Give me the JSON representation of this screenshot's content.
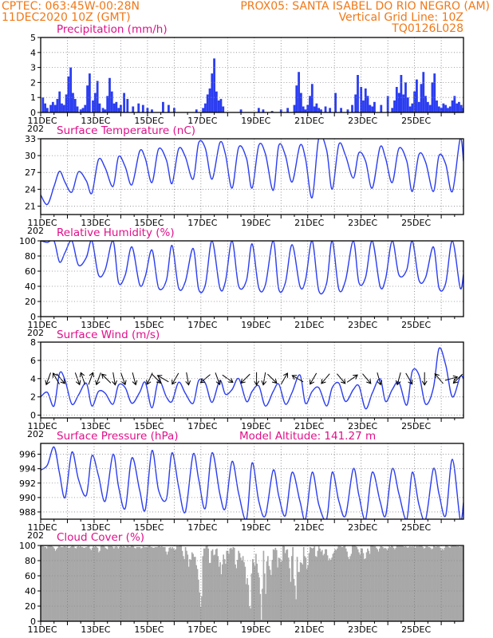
{
  "header": {
    "line1_left": "CPTEC:   063:45W-00:28N",
    "line1_right": "PROX05: SANTA ISABEL DO RIO NEGRO (AM)",
    "line2_left": "11DEC2020 10Z (GMT)",
    "line2_right": "Vertical Grid Line: 10Z",
    "line3_right": "TQ0126L028"
  },
  "colors": {
    "header": "#f07818",
    "title": "#e0108a",
    "series": "#2b3df0",
    "cloud": "#a8a8a8"
  },
  "chart_data": [
    {
      "type": "bar",
      "id": "precip",
      "title": "Precipitation (mm/h)",
      "x_unit": "hours since 11DEC2020 10Z",
      "ylim": [
        0,
        5
      ],
      "yticks": [
        0,
        1,
        2,
        3,
        4,
        5
      ],
      "x": [
        2,
        4,
        6,
        9,
        11,
        13,
        15,
        17,
        19,
        21,
        23,
        25,
        27,
        29,
        31,
        33,
        36,
        38,
        40,
        42,
        44,
        47,
        49,
        51,
        53,
        56,
        58,
        60,
        62,
        64,
        66,
        68,
        70,
        72,
        75,
        78,
        83,
        88,
        92,
        96,
        100,
        110,
        115,
        120,
        140,
        146,
        148,
        150,
        152,
        154,
        156,
        158,
        160,
        162,
        164,
        180,
        196,
        200,
        208,
        216,
        222,
        228,
        230,
        232,
        234,
        236,
        238,
        240,
        242,
        244,
        246,
        248,
        250,
        252,
        256,
        260,
        265,
        270,
        276,
        280,
        283,
        285,
        288,
        290,
        292,
        294,
        296,
        298,
        300,
        306,
        312,
        316,
        318,
        320,
        322,
        324,
        326,
        328,
        330,
        332,
        334,
        336,
        338,
        340,
        342,
        344,
        346,
        348,
        350,
        352,
        354,
        356,
        358,
        360,
        362,
        364,
        366,
        368,
        370,
        372,
        374,
        376,
        378,
        380
      ],
      "values": [
        1.0,
        0.6,
        0.3,
        0.5,
        0.7,
        0.5,
        0.9,
        1.4,
        0.6,
        0.5,
        1.2,
        2.4,
        3.0,
        1.3,
        0.9,
        0.4,
        0.2,
        0.3,
        0.5,
        1.8,
        2.6,
        0.8,
        1.3,
        2.1,
        0.6,
        0.3,
        0.2,
        1.1,
        2.3,
        1.4,
        0.6,
        0.7,
        0.3,
        0.5,
        1.3,
        0.9,
        0.4,
        0.6,
        0.5,
        0.3,
        0.2,
        0.7,
        0.5,
        0.3,
        0.2,
        0.3,
        0.6,
        1.2,
        1.6,
        2.6,
        3.6,
        1.4,
        0.8,
        0.9,
        0.4,
        0.2,
        0.3,
        0.2,
        0.1,
        0.2,
        0.3,
        0.5,
        1.8,
        2.7,
        1.3,
        0.4,
        0.2,
        0.5,
        1.1,
        1.9,
        0.4,
        0.6,
        0.3,
        0.2,
        0.4,
        0.3,
        1.3,
        0.3,
        0.2,
        0.5,
        1.2,
        2.5,
        1.7,
        0.8,
        1.6,
        1.1,
        0.5,
        0.4,
        0.7,
        0.5,
        1.1,
        0.3,
        0.8,
        1.7,
        1.3,
        2.5,
        1.2,
        2.0,
        1.0,
        0.4,
        0.6,
        1.4,
        2.2,
        0.7,
        1.9,
        2.7,
        1.1,
        0.7,
        0.5,
        2.0,
        2.6,
        0.8,
        0.4,
        0.3,
        0.6,
        0.5,
        0.3,
        0.4,
        0.8,
        1.1,
        0.6,
        0.7,
        0.5,
        0.3
      ]
    },
    {
      "type": "line",
      "id": "temperature",
      "title": "Surface Temperature (nC)",
      "x_unit": "hours since 11DEC2020 10Z",
      "ylim": [
        19.5,
        33
      ],
      "yticks": [
        21,
        24,
        27,
        30,
        33
      ],
      "x": [
        0,
        6,
        12,
        17,
        22,
        28,
        34,
        41,
        46,
        52,
        58,
        65,
        70,
        76,
        82,
        89,
        94,
        100,
        106,
        113,
        118,
        124,
        130,
        137,
        142,
        148,
        154,
        161,
        166,
        172,
        178,
        185,
        190,
        196,
        202,
        209,
        214,
        220,
        226,
        233,
        238,
        244,
        250,
        257,
        262,
        268,
        274,
        281,
        286,
        292,
        298,
        305,
        310,
        316,
        322,
        329,
        334,
        340,
        346,
        353,
        358,
        364,
        370,
        377,
        380
      ],
      "values": [
        23.0,
        21.3,
        24.5,
        27.2,
        25.2,
        23.5,
        27.1,
        25.5,
        23.3,
        29.3,
        27.8,
        24.5,
        29.8,
        28.0,
        24.8,
        30.8,
        29.5,
        25.2,
        31.2,
        29.2,
        25.0,
        31.2,
        29.8,
        25.8,
        32.3,
        31.3,
        25.8,
        32.3,
        30.3,
        24.2,
        31.5,
        29.5,
        24.2,
        31.8,
        30.3,
        23.8,
        31.8,
        30.0,
        25.3,
        31.8,
        29.5,
        22.5,
        33.2,
        31.0,
        24.0,
        32.0,
        30.0,
        26.0,
        30.5,
        29.0,
        24.2,
        31.5,
        29.5,
        25.2,
        31.3,
        29.0,
        23.6,
        30.2,
        28.8,
        23.6,
        30.0,
        28.5,
        23.6,
        33.0,
        29.0
      ]
    },
    {
      "type": "line",
      "id": "humidity",
      "title": "Relative Humidity (%)",
      "x_unit": "hours since 11DEC2020 10Z",
      "ylim": [
        0,
        100
      ],
      "yticks": [
        0,
        20,
        40,
        60,
        80,
        100
      ],
      "x": [
        0,
        6,
        12,
        17,
        22,
        28,
        34,
        41,
        46,
        52,
        58,
        65,
        70,
        76,
        82,
        89,
        94,
        100,
        106,
        113,
        118,
        124,
        130,
        137,
        142,
        148,
        154,
        161,
        166,
        172,
        178,
        185,
        190,
        196,
        202,
        209,
        214,
        220,
        226,
        233,
        238,
        244,
        250,
        257,
        262,
        268,
        274,
        281,
        286,
        292,
        298,
        305,
        310,
        316,
        322,
        329,
        334,
        340,
        346,
        353,
        358,
        364,
        370,
        377,
        380
      ],
      "values": [
        100,
        98,
        100,
        72,
        85,
        100,
        68,
        78,
        100,
        55,
        62,
        100,
        45,
        55,
        92,
        42,
        53,
        88,
        38,
        48,
        94,
        38,
        46,
        90,
        36,
        42,
        100,
        38,
        46,
        100,
        40,
        48,
        96,
        38,
        42,
        100,
        36,
        45,
        95,
        40,
        48,
        100,
        34,
        44,
        100,
        36,
        48,
        100,
        45,
        52,
        100,
        40,
        50,
        100,
        55,
        62,
        100,
        48,
        52,
        92,
        38,
        44,
        100,
        38,
        56
      ]
    },
    {
      "type": "line",
      "id": "wind",
      "title": "Surface Wind (m/s)",
      "x_unit": "hours since 11DEC2020 10Z",
      "ylim": [
        -0.3,
        8
      ],
      "yticks": [
        0,
        2,
        4,
        6,
        8
      ],
      "x": [
        0,
        6,
        12,
        17,
        22,
        28,
        34,
        41,
        46,
        52,
        58,
        65,
        70,
        76,
        82,
        89,
        94,
        100,
        106,
        113,
        118,
        124,
        130,
        137,
        142,
        148,
        154,
        161,
        166,
        172,
        178,
        185,
        190,
        196,
        202,
        209,
        214,
        220,
        226,
        233,
        238,
        244,
        250,
        257,
        262,
        268,
        274,
        281,
        286,
        292,
        298,
        305,
        310,
        316,
        322,
        329,
        334,
        340,
        346,
        353,
        358,
        364,
        370,
        377,
        380
      ],
      "values": [
        2.0,
        2.5,
        1.0,
        4.6,
        3.8,
        1.2,
        2.2,
        3.5,
        1.0,
        2.6,
        2.4,
        1.2,
        3.3,
        3.0,
        1.3,
        2.5,
        3.6,
        0.8,
        3.8,
        2.0,
        1.5,
        3.6,
        2.4,
        1.3,
        3.8,
        3.5,
        1.4,
        3.8,
        2.3,
        2.8,
        4.0,
        1.5,
        2.6,
        3.2,
        1.0,
        2.6,
        3.4,
        1.2,
        2.5,
        4.4,
        1.3,
        2.6,
        3.0,
        1.0,
        3.0,
        3.5,
        1.5,
        2.8,
        3.2,
        0.7,
        2.4,
        4.0,
        1.5,
        2.8,
        3.6,
        1.1,
        4.8,
        4.4,
        1.2,
        3.0,
        7.3,
        5.5,
        2.0,
        4.2,
        4.0
      ],
      "arrows_x": [
        7,
        14,
        18,
        33,
        38,
        45,
        52,
        59,
        66,
        74,
        84,
        98,
        104,
        110,
        121,
        132,
        148,
        159,
        168,
        184,
        194,
        201,
        208,
        219,
        231,
        245,
        256,
        270,
        280,
        293,
        304,
        322,
        331,
        345,
        358,
        369,
        375
      ],
      "arrows_dir_deg": [
        200,
        330,
        140,
        160,
        340,
        20,
        200,
        315,
        170,
        160,
        165,
        205,
        135,
        300,
        210,
        170,
        230,
        160,
        125,
        225,
        180,
        190,
        135,
        30,
        300,
        210,
        220,
        140,
        55,
        140,
        165,
        195,
        150,
        180,
        320,
        75,
        225
      ]
    },
    {
      "type": "line",
      "id": "pressure",
      "title": "Surface Pressure (hPa)",
      "annotation": "Model Altitude: 141.27 m",
      "x_unit": "hours since 11DEC2020 10Z",
      "ylim": [
        987,
        997.5
      ],
      "yticks": [
        988,
        990,
        992,
        994,
        996
      ],
      "x": [
        0,
        6,
        12,
        17,
        22,
        28,
        34,
        41,
        46,
        52,
        58,
        65,
        70,
        76,
        82,
        89,
        94,
        100,
        106,
        113,
        118,
        124,
        130,
        137,
        142,
        148,
        154,
        161,
        166,
        172,
        178,
        185,
        190,
        196,
        202,
        209,
        214,
        220,
        226,
        233,
        238,
        244,
        250,
        257,
        262,
        268,
        274,
        281,
        286,
        292,
        298,
        305,
        310,
        316,
        322,
        329,
        334,
        340,
        346,
        353,
        358,
        364,
        370,
        377,
        380
      ],
      "values": [
        993.8,
        994.5,
        997.0,
        993.3,
        990.0,
        996.3,
        992.5,
        990.3,
        995.8,
        993.0,
        989.5,
        996.0,
        991.5,
        988.5,
        995.5,
        991.0,
        988.3,
        996.5,
        991.0,
        989.8,
        996.2,
        991.5,
        988.0,
        996.0,
        992.5,
        988.5,
        996.2,
        990.5,
        988.5,
        995.0,
        990.5,
        987.0,
        994.8,
        989.5,
        987.5,
        993.8,
        990.2,
        987.5,
        993.5,
        989.5,
        987.0,
        993.5,
        989.0,
        987.0,
        993.5,
        989.5,
        987.5,
        994.0,
        990.3,
        987.0,
        993.5,
        989.5,
        987.5,
        994.0,
        990.5,
        987.0,
        993.5,
        989.0,
        987.0,
        994.0,
        990.5,
        987.5,
        995.3,
        987.0,
        989.3
      ]
    },
    {
      "type": "bar",
      "id": "cloud",
      "title": "Cloud Cover (%)",
      "x_unit": "hours since 11DEC2020 10Z",
      "ylim": [
        0,
        100
      ],
      "yticks": [
        0,
        20,
        40,
        60,
        80,
        100
      ],
      "values": [
        100,
        100,
        99,
        98,
        98,
        96,
        99,
        100,
        100,
        100,
        99,
        98,
        96,
        93,
        95,
        97,
        99,
        99,
        98,
        98,
        98,
        99,
        99,
        98,
        99,
        97,
        97,
        98,
        99,
        100,
        99,
        97,
        96,
        98,
        99,
        98,
        99,
        98,
        98,
        97,
        97,
        98,
        98,
        99,
        99,
        96,
        94,
        97,
        99,
        98,
        99,
        98,
        97,
        91,
        93,
        99,
        100,
        100,
        99,
        97,
        96,
        95,
        99,
        99,
        99,
        99,
        98,
        96,
        98,
        99,
        98,
        96,
        98,
        99,
        99,
        98,
        99,
        98,
        97,
        99,
        99,
        98,
        98,
        100,
        100,
        99,
        97,
        96,
        98,
        98,
        98,
        98,
        96,
        97,
        99,
        98,
        98,
        98,
        98,
        99,
        100,
        98,
        98,
        97,
        97,
        98,
        98,
        98,
        99,
        99,
        98,
        99,
        98,
        98,
        98,
        92,
        88,
        92,
        97,
        98,
        96,
        98,
        96,
        94,
        95,
        99,
        99,
        99,
        100,
        100,
        93,
        86,
        82,
        98,
        93,
        88,
        72,
        82,
        81,
        91,
        89,
        85,
        85,
        74,
        69,
        55,
        38,
        19,
        33,
        86,
        96,
        96,
        99,
        100,
        96,
        77,
        77,
        93,
        95,
        87,
        88,
        95,
        96,
        86,
        72,
        78,
        62,
        75,
        88,
        82,
        76,
        93,
        93,
        89,
        96,
        97,
        95,
        98,
        97,
        75,
        70,
        81,
        93,
        90,
        84,
        80,
        86,
        78,
        72,
        49,
        57,
        48,
        20,
        17,
        63,
        82,
        77,
        73,
        89,
        76,
        64,
        58,
        36,
        2,
        43,
        93,
        63,
        36,
        79,
        86,
        73,
        68,
        61,
        81,
        95,
        94,
        97,
        94,
        71,
        84,
        83,
        78,
        80,
        100,
        99,
        90,
        94,
        95,
        84,
        70,
        52,
        86,
        98,
        56,
        47,
        29,
        85,
        65,
        65,
        78,
        77,
        75,
        98,
        86,
        84,
        69,
        74,
        90,
        98,
        97,
        96,
        97,
        99,
        86,
        85,
        93,
        99,
        96,
        92,
        94,
        87,
        89,
        95,
        95,
        87,
        80,
        83,
        81,
        84,
        89,
        91,
        95,
        94,
        96,
        99,
        99,
        99,
        98,
        98,
        99,
        100,
        96,
        92,
        85,
        82,
        86,
        89,
        100,
        100,
        100,
        99,
        98,
        95,
        91,
        88,
        96,
        96,
        90,
        82,
        83,
        91,
        96,
        93,
        89,
        100,
        100,
        100,
        99,
        99,
        97,
        95,
        92,
        96,
        99,
        99,
        98,
        96,
        97,
        96,
        94,
        96,
        99,
        98,
        100,
        99,
        97,
        95,
        97,
        100,
        100,
        100,
        100,
        100,
        100,
        99,
        98,
        99,
        98,
        97,
        98,
        99,
        98,
        99,
        98,
        99,
        97,
        99,
        99,
        99,
        100,
        100,
        100,
        98,
        96,
        97,
        99,
        99,
        98,
        98,
        97,
        95,
        96,
        100,
        99,
        98,
        99,
        99,
        99,
        97,
        94,
        96,
        94,
        97,
        100,
        100,
        99,
        98,
        97,
        99,
        100,
        100,
        100,
        100,
        99,
        99,
        99,
        98,
        99,
        99,
        99
      ]
    }
  ],
  "x_axis": {
    "tick_labels": [
      "11DEC",
      "13DEC",
      "15DEC",
      "17DEC",
      "19DEC",
      "21DEC",
      "23DEC",
      "25DEC"
    ],
    "below_label": "202"
  }
}
